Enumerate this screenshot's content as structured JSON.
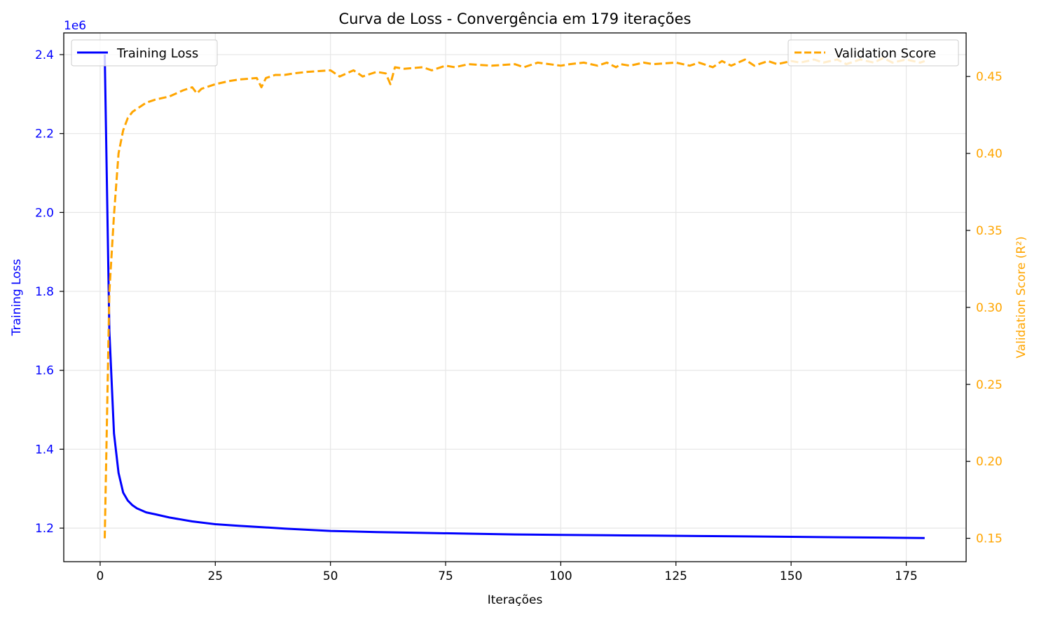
{
  "chart_data": {
    "type": "line",
    "title": "Curva de Loss - Convergência em 179 iterações",
    "xlabel": "Iterações",
    "ylabel_left": "Training Loss",
    "ylabel_right": "Validation Score (R²)",
    "y_left_offset_label": "1e6",
    "xlim": [
      -7.9,
      188
    ],
    "ylim_left": [
      1.115,
      2.455
    ],
    "ylim_right": [
      0.1348,
      0.4783
    ],
    "x_ticks": [
      0,
      25,
      50,
      75,
      100,
      125,
      150,
      175
    ],
    "y_left_ticks": [
      1.2,
      1.4,
      1.6,
      1.8,
      2.0,
      2.2,
      2.4
    ],
    "y_right_ticks": [
      0.15,
      0.2,
      0.25,
      0.3,
      0.35,
      0.4,
      0.45
    ],
    "grid": true,
    "colors": {
      "training": "#0000ff",
      "validation": "#ffa500",
      "grid": "#e6e6e6"
    },
    "series": [
      {
        "name": "Training Loss",
        "axis": "left",
        "style": "solid",
        "legend_position": "top-left",
        "x": [
          1,
          2,
          3,
          4,
          5,
          6,
          7,
          8,
          9,
          10,
          12,
          15,
          20,
          25,
          30,
          40,
          50,
          60,
          70,
          80,
          90,
          100,
          110,
          120,
          130,
          140,
          150,
          160,
          170,
          179
        ],
        "values": [
          2.4,
          1.7,
          1.44,
          1.34,
          1.29,
          1.27,
          1.258,
          1.25,
          1.245,
          1.24,
          1.235,
          1.227,
          1.217,
          1.21,
          1.206,
          1.199,
          1.193,
          1.19,
          1.188,
          1.186,
          1.184,
          1.183,
          1.182,
          1.181,
          1.18,
          1.179,
          1.178,
          1.177,
          1.176,
          1.175
        ]
      },
      {
        "name": "Validation Score",
        "axis": "right",
        "style": "dashed",
        "legend_position": "top-right",
        "x": [
          1,
          2,
          3,
          4,
          5,
          6,
          7,
          8,
          9,
          10,
          12,
          15,
          18,
          20,
          21,
          22,
          25,
          28,
          30,
          34,
          35,
          36,
          38,
          40,
          42,
          45,
          50,
          52,
          55,
          57,
          60,
          62,
          63,
          64,
          66,
          70,
          72,
          75,
          77,
          80,
          85,
          90,
          92,
          95,
          100,
          102,
          105,
          108,
          110,
          112,
          113,
          115,
          118,
          120,
          125,
          128,
          130,
          133,
          135,
          137,
          140,
          142,
          145,
          147,
          150,
          152,
          155,
          157,
          160,
          162,
          165,
          168,
          170,
          172,
          175,
          178,
          179
        ],
        "values": [
          0.15,
          0.31,
          0.36,
          0.4,
          0.415,
          0.423,
          0.427,
          0.429,
          0.431,
          0.433,
          0.435,
          0.437,
          0.441,
          0.443,
          0.439,
          0.442,
          0.445,
          0.447,
          0.448,
          0.449,
          0.443,
          0.449,
          0.451,
          0.451,
          0.452,
          0.453,
          0.454,
          0.45,
          0.454,
          0.45,
          0.453,
          0.452,
          0.445,
          0.456,
          0.455,
          0.456,
          0.454,
          0.457,
          0.456,
          0.458,
          0.457,
          0.458,
          0.456,
          0.459,
          0.457,
          0.458,
          0.459,
          0.457,
          0.459,
          0.456,
          0.458,
          0.457,
          0.459,
          0.458,
          0.459,
          0.457,
          0.459,
          0.456,
          0.46,
          0.457,
          0.461,
          0.457,
          0.46,
          0.458,
          0.46,
          0.459,
          0.461,
          0.459,
          0.461,
          0.458,
          0.461,
          0.459,
          0.462,
          0.459,
          0.461,
          0.459,
          0.46
        ]
      }
    ]
  }
}
